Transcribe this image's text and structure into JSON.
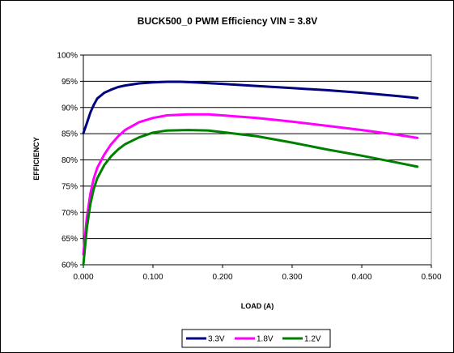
{
  "chart_data": {
    "type": "line",
    "title": "BUCK500_0 PWM Efficiency VIN = 3.8V",
    "xlabel": "LOAD (A)",
    "ylabel": "EFFICIENCY",
    "xlim": [
      0,
      0.5
    ],
    "ylim": [
      0.6,
      1.0
    ],
    "x_ticks": [
      "0.000",
      "0.100",
      "0.200",
      "0.300",
      "0.400",
      "0.500"
    ],
    "y_ticks": [
      "60%",
      "65%",
      "70%",
      "75%",
      "80%",
      "85%",
      "90%",
      "95%",
      "100%"
    ],
    "grid": "horizontal",
    "legend_position": "bottom",
    "series": [
      {
        "name": "3.3V",
        "color": "#000080",
        "x": [
          0.0,
          0.005,
          0.01,
          0.015,
          0.02,
          0.03,
          0.04,
          0.05,
          0.06,
          0.08,
          0.1,
          0.12,
          0.14,
          0.16,
          0.2,
          0.25,
          0.3,
          0.35,
          0.4,
          0.45,
          0.48
        ],
        "y": [
          0.851,
          0.87,
          0.89,
          0.905,
          0.917,
          0.928,
          0.934,
          0.939,
          0.942,
          0.946,
          0.948,
          0.949,
          0.949,
          0.948,
          0.945,
          0.941,
          0.937,
          0.933,
          0.928,
          0.922,
          0.918
        ]
      },
      {
        "name": "1.8V",
        "color": "#FF00FF",
        "x": [
          0.0,
          0.005,
          0.01,
          0.015,
          0.02,
          0.03,
          0.04,
          0.05,
          0.06,
          0.08,
          0.1,
          0.12,
          0.15,
          0.18,
          0.2,
          0.25,
          0.3,
          0.35,
          0.4,
          0.45,
          0.48
        ],
        "y": [
          0.62,
          0.69,
          0.735,
          0.765,
          0.785,
          0.81,
          0.83,
          0.845,
          0.857,
          0.872,
          0.88,
          0.885,
          0.887,
          0.887,
          0.885,
          0.88,
          0.873,
          0.865,
          0.857,
          0.848,
          0.842
        ]
      },
      {
        "name": "1.2V",
        "color": "#008000",
        "x": [
          0.0,
          0.005,
          0.01,
          0.015,
          0.02,
          0.03,
          0.04,
          0.05,
          0.06,
          0.08,
          0.1,
          0.12,
          0.15,
          0.18,
          0.2,
          0.25,
          0.3,
          0.35,
          0.4,
          0.45,
          0.48
        ],
        "y": [
          0.6,
          0.67,
          0.715,
          0.745,
          0.765,
          0.79,
          0.807,
          0.82,
          0.83,
          0.843,
          0.852,
          0.856,
          0.857,
          0.856,
          0.853,
          0.845,
          0.833,
          0.82,
          0.808,
          0.795,
          0.787
        ]
      }
    ]
  }
}
